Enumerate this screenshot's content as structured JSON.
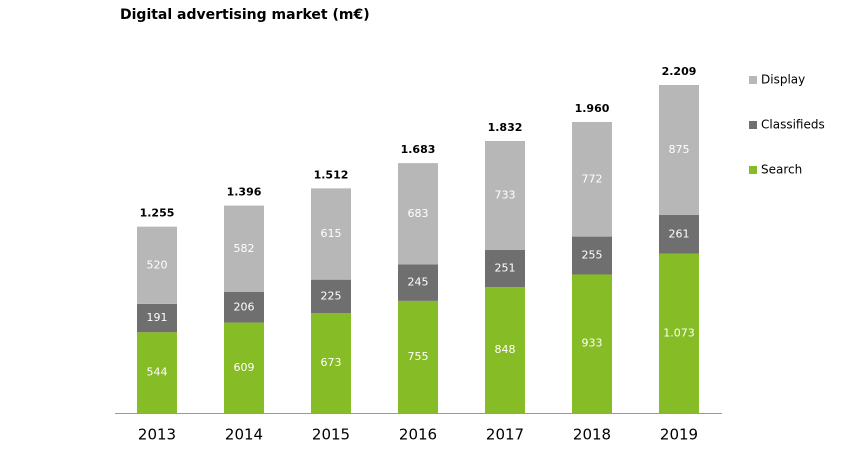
{
  "chart_data": {
    "type": "stacked-bar",
    "title": "Digital advertising market (m€)",
    "categories": [
      "2013",
      "2014",
      "2015",
      "2016",
      "2017",
      "2018",
      "2019"
    ],
    "series": [
      {
        "name": "Search",
        "color": "#86bc25",
        "values": [
          544,
          609,
          673,
          755,
          848,
          933,
          1073
        ],
        "value_labels": [
          "544",
          "609",
          "673",
          "755",
          "848",
          "933",
          "1.073"
        ]
      },
      {
        "name": "Classifieds",
        "color": "#6f6f6f",
        "values": [
          191,
          206,
          225,
          245,
          251,
          255,
          261
        ]
      },
      {
        "name": "Display",
        "color": "#b7b7b7",
        "values": [
          520,
          582,
          615,
          683,
          733,
          772,
          875
        ]
      }
    ],
    "totals": {
      "values": [
        1255,
        1396,
        1512,
        1683,
        1832,
        1960,
        2209
      ],
      "value_labels": [
        "1.255",
        "1.396",
        "1.512",
        "1.683",
        "1.832",
        "1.960",
        "2.209"
      ]
    },
    "legend": "right"
  }
}
